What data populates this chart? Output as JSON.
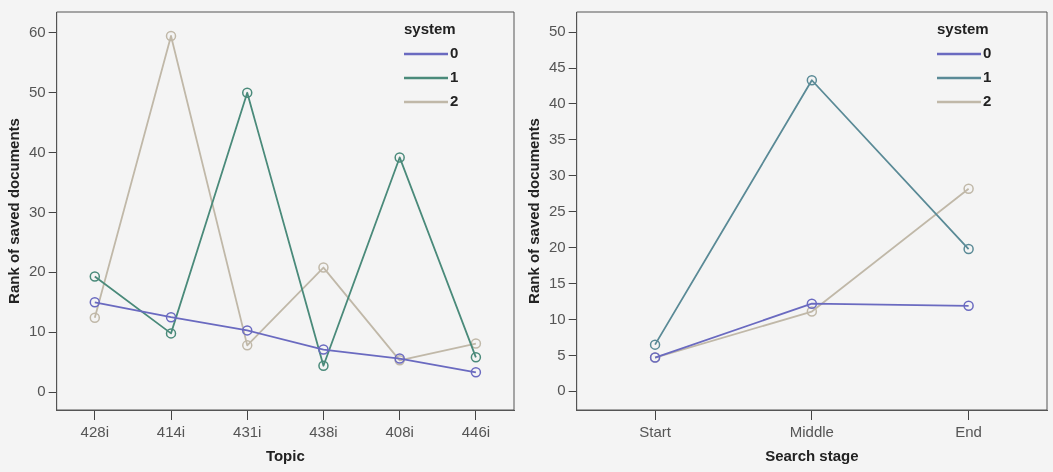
{
  "chart_data": [
    {
      "type": "line",
      "xlabel": "Topic",
      "ylabel": "Rank of saved documents",
      "legend_title": "system",
      "legend": "top right",
      "marker": "circle",
      "grid": false,
      "categories": [
        "428i",
        "414i",
        "431i",
        "438i",
        "408i",
        "446i"
      ],
      "ylim": [
        -3,
        63.5
      ],
      "yticks": [
        0,
        10,
        20,
        30,
        40,
        50,
        60
      ],
      "series": [
        {
          "name": "0",
          "color": "#6a6ac0",
          "values": [
            15,
            12.5,
            10.3,
            7.1,
            5.6,
            3.3
          ]
        },
        {
          "name": "1",
          "color": "#4a8a7a",
          "values": [
            19.3,
            9.8,
            50,
            4.4,
            39.2,
            5.8
          ]
        },
        {
          "name": "2",
          "color": "#c0b8a8",
          "values": [
            12.4,
            59.5,
            7.8,
            20.8,
            5.3,
            8.1
          ]
        }
      ]
    },
    {
      "type": "line",
      "xlabel": "Search stage",
      "ylabel": "Rank of saved documents",
      "legend_title": "system",
      "legend": "top right",
      "marker": "circle",
      "grid": false,
      "categories": [
        "Start",
        "Middle",
        "End"
      ],
      "ylim": [
        -2.6,
        52.8
      ],
      "yticks": [
        0,
        5,
        10,
        15,
        20,
        25,
        30,
        35,
        40,
        45,
        50
      ],
      "series": [
        {
          "name": "0",
          "color": "#6a6ac0",
          "values": [
            4.7,
            12.2,
            11.9
          ]
        },
        {
          "name": "1",
          "color": "#5a8a96",
          "values": [
            6.5,
            43.3,
            19.8
          ]
        },
        {
          "name": "2",
          "color": "#c0b8a8",
          "values": [
            4.7,
            11.1,
            28.2
          ]
        }
      ]
    }
  ]
}
